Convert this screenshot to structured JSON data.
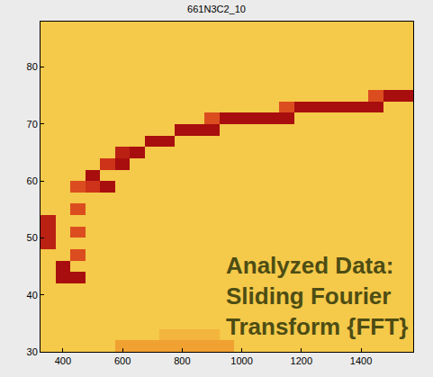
{
  "chart_data": {
    "type": "heatmap",
    "title": "661N3C2_10",
    "annotation": [
      "Analyzed Data:",
      "Sliding Fourier",
      "Transform {FFT}"
    ],
    "x": [
      350,
      400,
      450,
      500,
      550,
      600,
      650,
      700,
      750,
      800,
      850,
      900,
      950,
      1000,
      1050,
      1100,
      1150,
      1200,
      1250,
      1300,
      1350,
      1400,
      1450,
      1500,
      1550
    ],
    "y": [
      31,
      33,
      35,
      37,
      39,
      41,
      43,
      45,
      47,
      49,
      51,
      53,
      55,
      57,
      59,
      61,
      63,
      65,
      67,
      69,
      71,
      73,
      75,
      77,
      79,
      81,
      83,
      85,
      87
    ],
    "z": [
      [
        2,
        2,
        2,
        2,
        2,
        4,
        4,
        4,
        4,
        4,
        4,
        4,
        4,
        2,
        2,
        2,
        2,
        2,
        2,
        2,
        2,
        2,
        2,
        2,
        2
      ],
      [
        2,
        2,
        2,
        2,
        2,
        2,
        2,
        2,
        3,
        3,
        3,
        3,
        2,
        2,
        2,
        2,
        2,
        2,
        2,
        2,
        2,
        2,
        2,
        2,
        2
      ],
      [
        2,
        2,
        2,
        2,
        2,
        2,
        2,
        2,
        2,
        2,
        2,
        2,
        2,
        2,
        2,
        2,
        2,
        2,
        2,
        2,
        2,
        2,
        2,
        2,
        2
      ],
      [
        2,
        2,
        2,
        2,
        2,
        2,
        2,
        2,
        2,
        2,
        2,
        2,
        2,
        2,
        2,
        2,
        2,
        2,
        2,
        2,
        2,
        2,
        2,
        2,
        2
      ],
      [
        2,
        2,
        2,
        2,
        2,
        2,
        2,
        2,
        2,
        2,
        2,
        2,
        2,
        2,
        2,
        2,
        2,
        2,
        2,
        2,
        2,
        2,
        2,
        2,
        2
      ],
      [
        2,
        2,
        2,
        2,
        2,
        2,
        2,
        2,
        2,
        2,
        2,
        2,
        2,
        2,
        2,
        2,
        2,
        2,
        2,
        2,
        2,
        2,
        2,
        2,
        2
      ],
      [
        2,
        9,
        9,
        2,
        2,
        2,
        2,
        2,
        2,
        2,
        2,
        2,
        2,
        2,
        2,
        2,
        2,
        2,
        2,
        2,
        2,
        2,
        2,
        2,
        2
      ],
      [
        2,
        9,
        2,
        2,
        2,
        2,
        2,
        2,
        2,
        2,
        2,
        2,
        2,
        2,
        2,
        2,
        2,
        2,
        2,
        2,
        2,
        2,
        2,
        2,
        2
      ],
      [
        2,
        2,
        6,
        2,
        2,
        2,
        2,
        2,
        2,
        2,
        2,
        2,
        2,
        2,
        2,
        2,
        2,
        2,
        2,
        2,
        2,
        2,
        2,
        2,
        2
      ],
      [
        8,
        2,
        2,
        2,
        2,
        2,
        2,
        2,
        2,
        2,
        2,
        2,
        2,
        2,
        2,
        2,
        2,
        2,
        2,
        2,
        2,
        2,
        2,
        2,
        2
      ],
      [
        8,
        2,
        6,
        2,
        2,
        2,
        2,
        2,
        2,
        2,
        2,
        2,
        2,
        2,
        2,
        2,
        2,
        2,
        2,
        2,
        2,
        2,
        2,
        2,
        2
      ],
      [
        8,
        2,
        2,
        2,
        2,
        2,
        2,
        2,
        2,
        2,
        2,
        2,
        2,
        2,
        2,
        2,
        2,
        2,
        2,
        2,
        2,
        2,
        2,
        2,
        2
      ],
      [
        2,
        2,
        6,
        2,
        2,
        2,
        2,
        2,
        2,
        2,
        2,
        2,
        2,
        2,
        2,
        2,
        2,
        2,
        2,
        2,
        2,
        2,
        2,
        2,
        2
      ],
      [
        2,
        2,
        2,
        2,
        2,
        2,
        2,
        2,
        2,
        2,
        2,
        2,
        2,
        2,
        2,
        2,
        2,
        2,
        2,
        2,
        2,
        2,
        2,
        2,
        2
      ],
      [
        2,
        2,
        6,
        7,
        9,
        2,
        2,
        2,
        2,
        2,
        2,
        2,
        2,
        2,
        2,
        2,
        2,
        2,
        2,
        2,
        2,
        2,
        2,
        2,
        2
      ],
      [
        2,
        2,
        2,
        9,
        2,
        2,
        2,
        2,
        2,
        2,
        2,
        2,
        2,
        2,
        2,
        2,
        2,
        2,
        2,
        2,
        2,
        2,
        2,
        2,
        2
      ],
      [
        2,
        2,
        2,
        2,
        7,
        9,
        2,
        2,
        2,
        2,
        2,
        2,
        2,
        2,
        2,
        2,
        2,
        2,
        2,
        2,
        2,
        2,
        2,
        2,
        2
      ],
      [
        2,
        2,
        2,
        2,
        2,
        8,
        9,
        2,
        2,
        2,
        2,
        2,
        2,
        2,
        2,
        2,
        2,
        2,
        2,
        2,
        2,
        2,
        2,
        2,
        2
      ],
      [
        2,
        2,
        2,
        2,
        2,
        2,
        2,
        9,
        9,
        2,
        2,
        2,
        2,
        2,
        2,
        2,
        2,
        2,
        2,
        2,
        2,
        2,
        2,
        2,
        2
      ],
      [
        2,
        2,
        2,
        2,
        2,
        2,
        2,
        2,
        2,
        9,
        9,
        9,
        2,
        2,
        2,
        2,
        2,
        2,
        2,
        2,
        2,
        2,
        2,
        2,
        2
      ],
      [
        2,
        2,
        2,
        2,
        2,
        2,
        2,
        2,
        2,
        2,
        2,
        6,
        9,
        9,
        9,
        9,
        9,
        2,
        2,
        2,
        2,
        2,
        2,
        2,
        2
      ],
      [
        2,
        2,
        2,
        2,
        2,
        2,
        2,
        2,
        2,
        2,
        2,
        2,
        2,
        2,
        2,
        2,
        6,
        9,
        9,
        9,
        9,
        9,
        9,
        2,
        2
      ],
      [
        2,
        2,
        2,
        2,
        2,
        2,
        2,
        2,
        2,
        2,
        2,
        2,
        2,
        2,
        2,
        2,
        2,
        2,
        2,
        2,
        2,
        2,
        6,
        9,
        9
      ],
      [
        2,
        2,
        2,
        2,
        2,
        2,
        2,
        2,
        2,
        2,
        2,
        2,
        2,
        2,
        2,
        2,
        2,
        2,
        2,
        2,
        2,
        2,
        2,
        2,
        2
      ],
      [
        2,
        2,
        2,
        2,
        2,
        2,
        2,
        2,
        2,
        2,
        2,
        2,
        2,
        2,
        2,
        2,
        2,
        2,
        2,
        2,
        2,
        2,
        2,
        2,
        2
      ],
      [
        2,
        2,
        2,
        2,
        2,
        2,
        2,
        2,
        2,
        2,
        2,
        2,
        2,
        2,
        2,
        2,
        2,
        2,
        2,
        2,
        2,
        2,
        2,
        2,
        2
      ],
      [
        2,
        2,
        2,
        2,
        2,
        2,
        2,
        2,
        2,
        2,
        2,
        2,
        2,
        2,
        2,
        2,
        2,
        2,
        2,
        2,
        2,
        2,
        2,
        2,
        2
      ],
      [
        2,
        2,
        2,
        2,
        2,
        2,
        2,
        2,
        2,
        2,
        2,
        2,
        2,
        2,
        2,
        2,
        2,
        2,
        2,
        2,
        2,
        2,
        2,
        2,
        2
      ],
      [
        2,
        2,
        2,
        2,
        2,
        2,
        2,
        2,
        2,
        2,
        2,
        2,
        2,
        2,
        2,
        2,
        2,
        2,
        2,
        2,
        2,
        2,
        2,
        2,
        2
      ]
    ],
    "zlim": [
      0,
      9
    ],
    "xlim": [
      325,
      1575
    ],
    "ylim": [
      30,
      88
    ],
    "xticks": [
      400,
      600,
      800,
      1000,
      1200,
      1400
    ],
    "yticks": [
      30,
      40,
      50,
      60,
      70,
      80
    ],
    "grid": false
  }
}
